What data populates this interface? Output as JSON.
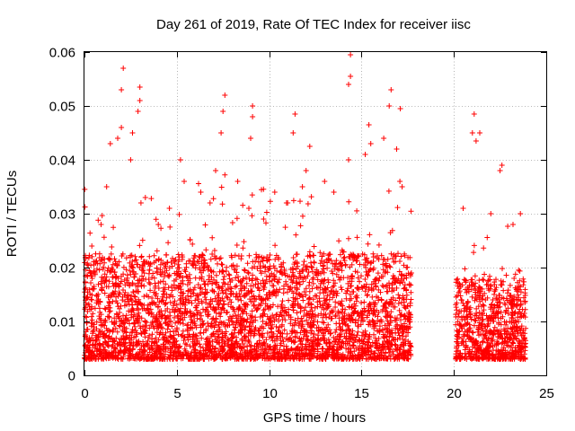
{
  "chart_data": {
    "type": "scatter",
    "title": "Day 261 of 2019, Rate Of TEC Index for receiver iisc",
    "xlabel": "GPS time / hours",
    "ylabel": "ROTI / TECUs",
    "xlim": [
      0,
      25
    ],
    "ylim": [
      0,
      0.06
    ],
    "xticks": [
      0,
      5,
      10,
      15,
      20,
      25
    ],
    "xtick_labels": [
      "0",
      "5",
      "10",
      "15",
      "20",
      "25"
    ],
    "yticks": [
      0,
      0.01,
      0.02,
      0.03,
      0.04,
      0.05,
      0.06
    ],
    "ytick_labels": [
      "0",
      "0.01",
      "0.02",
      "0.03",
      "0.04",
      "0.05",
      "0.06"
    ],
    "grid": true,
    "marker": "plus",
    "series_color": "#ff0000",
    "series": [
      {
        "name": "ROTI",
        "segments": [
          {
            "x_start": 0.0,
            "x_end": 17.7,
            "typical_range": [
              0.003,
              0.02
            ]
          },
          {
            "x_start": 20.1,
            "x_end": 23.9,
            "typical_range": [
              0.003,
              0.016
            ]
          }
        ],
        "outliers": [
          {
            "x": 0.4,
            "y": 0.024
          },
          {
            "x": 0.9,
            "y": 0.028
          },
          {
            "x": 1.2,
            "y": 0.035
          },
          {
            "x": 1.4,
            "y": 0.043
          },
          {
            "x": 1.8,
            "y": 0.044
          },
          {
            "x": 2.0,
            "y": 0.046
          },
          {
            "x": 2.0,
            "y": 0.053
          },
          {
            "x": 2.1,
            "y": 0.057
          },
          {
            "x": 2.5,
            "y": 0.04
          },
          {
            "x": 2.6,
            "y": 0.045
          },
          {
            "x": 2.9,
            "y": 0.049
          },
          {
            "x": 3.0,
            "y": 0.051
          },
          {
            "x": 3.0,
            "y": 0.0535
          },
          {
            "x": 3.3,
            "y": 0.033
          },
          {
            "x": 4.0,
            "y": 0.028
          },
          {
            "x": 4.6,
            "y": 0.031
          },
          {
            "x": 5.2,
            "y": 0.04
          },
          {
            "x": 5.4,
            "y": 0.036
          },
          {
            "x": 6.3,
            "y": 0.034
          },
          {
            "x": 6.8,
            "y": 0.032
          },
          {
            "x": 7.1,
            "y": 0.038
          },
          {
            "x": 7.4,
            "y": 0.045
          },
          {
            "x": 7.5,
            "y": 0.049
          },
          {
            "x": 7.6,
            "y": 0.052
          },
          {
            "x": 8.3,
            "y": 0.036
          },
          {
            "x": 8.9,
            "y": 0.031
          },
          {
            "x": 9.0,
            "y": 0.044
          },
          {
            "x": 9.1,
            "y": 0.048
          },
          {
            "x": 9.1,
            "y": 0.05
          },
          {
            "x": 9.7,
            "y": 0.029
          },
          {
            "x": 10.3,
            "y": 0.034
          },
          {
            "x": 11.0,
            "y": 0.032
          },
          {
            "x": 11.3,
            "y": 0.045
          },
          {
            "x": 11.4,
            "y": 0.0485
          },
          {
            "x": 11.8,
            "y": 0.035
          },
          {
            "x": 12.0,
            "y": 0.038
          },
          {
            "x": 12.2,
            "y": 0.0425
          },
          {
            "x": 13.0,
            "y": 0.036
          },
          {
            "x": 13.5,
            "y": 0.034
          },
          {
            "x": 14.3,
            "y": 0.04
          },
          {
            "x": 14.3,
            "y": 0.054
          },
          {
            "x": 14.4,
            "y": 0.0555
          },
          {
            "x": 14.4,
            "y": 0.0595
          },
          {
            "x": 15.2,
            "y": 0.041
          },
          {
            "x": 15.4,
            "y": 0.0465
          },
          {
            "x": 15.5,
            "y": 0.043
          },
          {
            "x": 16.2,
            "y": 0.044
          },
          {
            "x": 16.5,
            "y": 0.05
          },
          {
            "x": 16.6,
            "y": 0.053
          },
          {
            "x": 16.9,
            "y": 0.042
          },
          {
            "x": 17.1,
            "y": 0.0495
          },
          {
            "x": 17.2,
            "y": 0.035
          },
          {
            "x": 20.5,
            "y": 0.031
          },
          {
            "x": 21.0,
            "y": 0.045
          },
          {
            "x": 21.1,
            "y": 0.0485
          },
          {
            "x": 21.2,
            "y": 0.0435
          },
          {
            "x": 21.4,
            "y": 0.045
          },
          {
            "x": 22.0,
            "y": 0.03
          },
          {
            "x": 22.5,
            "y": 0.038
          },
          {
            "x": 22.6,
            "y": 0.039
          },
          {
            "x": 23.2,
            "y": 0.028
          },
          {
            "x": 23.6,
            "y": 0.03
          }
        ]
      }
    ]
  }
}
